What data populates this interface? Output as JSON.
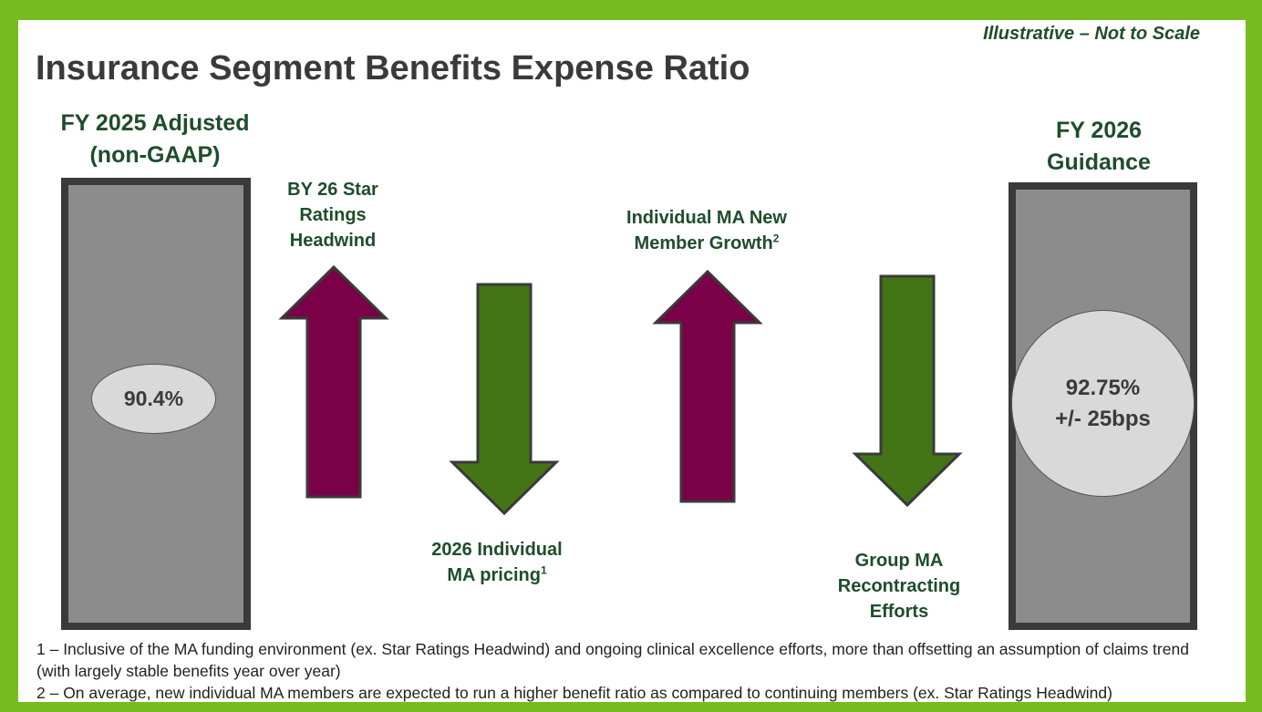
{
  "header": {
    "disclaimer": "Illustrative – Not to Scale",
    "title": "Insurance Segment Benefits Expense Ratio"
  },
  "start": {
    "heading_line1": "FY 2025 Adjusted",
    "heading_line2": "(non-GAAP)",
    "value": "90.4%"
  },
  "end": {
    "heading_line1": "FY 2026",
    "heading_line2": "Guidance",
    "value_line1": "92.75%",
    "value_line2": "+/- 25bps"
  },
  "drivers": [
    {
      "line1": "BY 26 Star",
      "line2": "Ratings",
      "line3": "Headwind",
      "direction": "up",
      "color": "#7a0047"
    },
    {
      "line1": "2026 Individual",
      "line2": "MA pricing",
      "sup": "1",
      "direction": "down",
      "color": "#437516"
    },
    {
      "line1": "Individual MA New",
      "line2": "Member Growth",
      "sup": "2",
      "direction": "up",
      "color": "#7a0047"
    },
    {
      "line1": "Group MA",
      "line2": "Recontracting",
      "line3": "Efforts",
      "direction": "down",
      "color": "#437516"
    }
  ],
  "footnotes": {
    "note1": "1 – Inclusive of the MA funding environment (ex. Star Ratings Headwind) and ongoing clinical excellence efforts, more than offsetting an assumption of claims trend (with largely stable benefits year over year)",
    "note2": "2 – On average, new individual MA members are expected to run a higher benefit ratio as compared to continuing members (ex. Star Ratings Headwind)"
  },
  "colors": {
    "frame": "#76bc21",
    "heading_green": "#1e4d2b",
    "bar_fill": "#8c8c8c",
    "bar_border": "#3a3a3a",
    "up_arrow": "#7a0047",
    "down_arrow": "#437516"
  }
}
